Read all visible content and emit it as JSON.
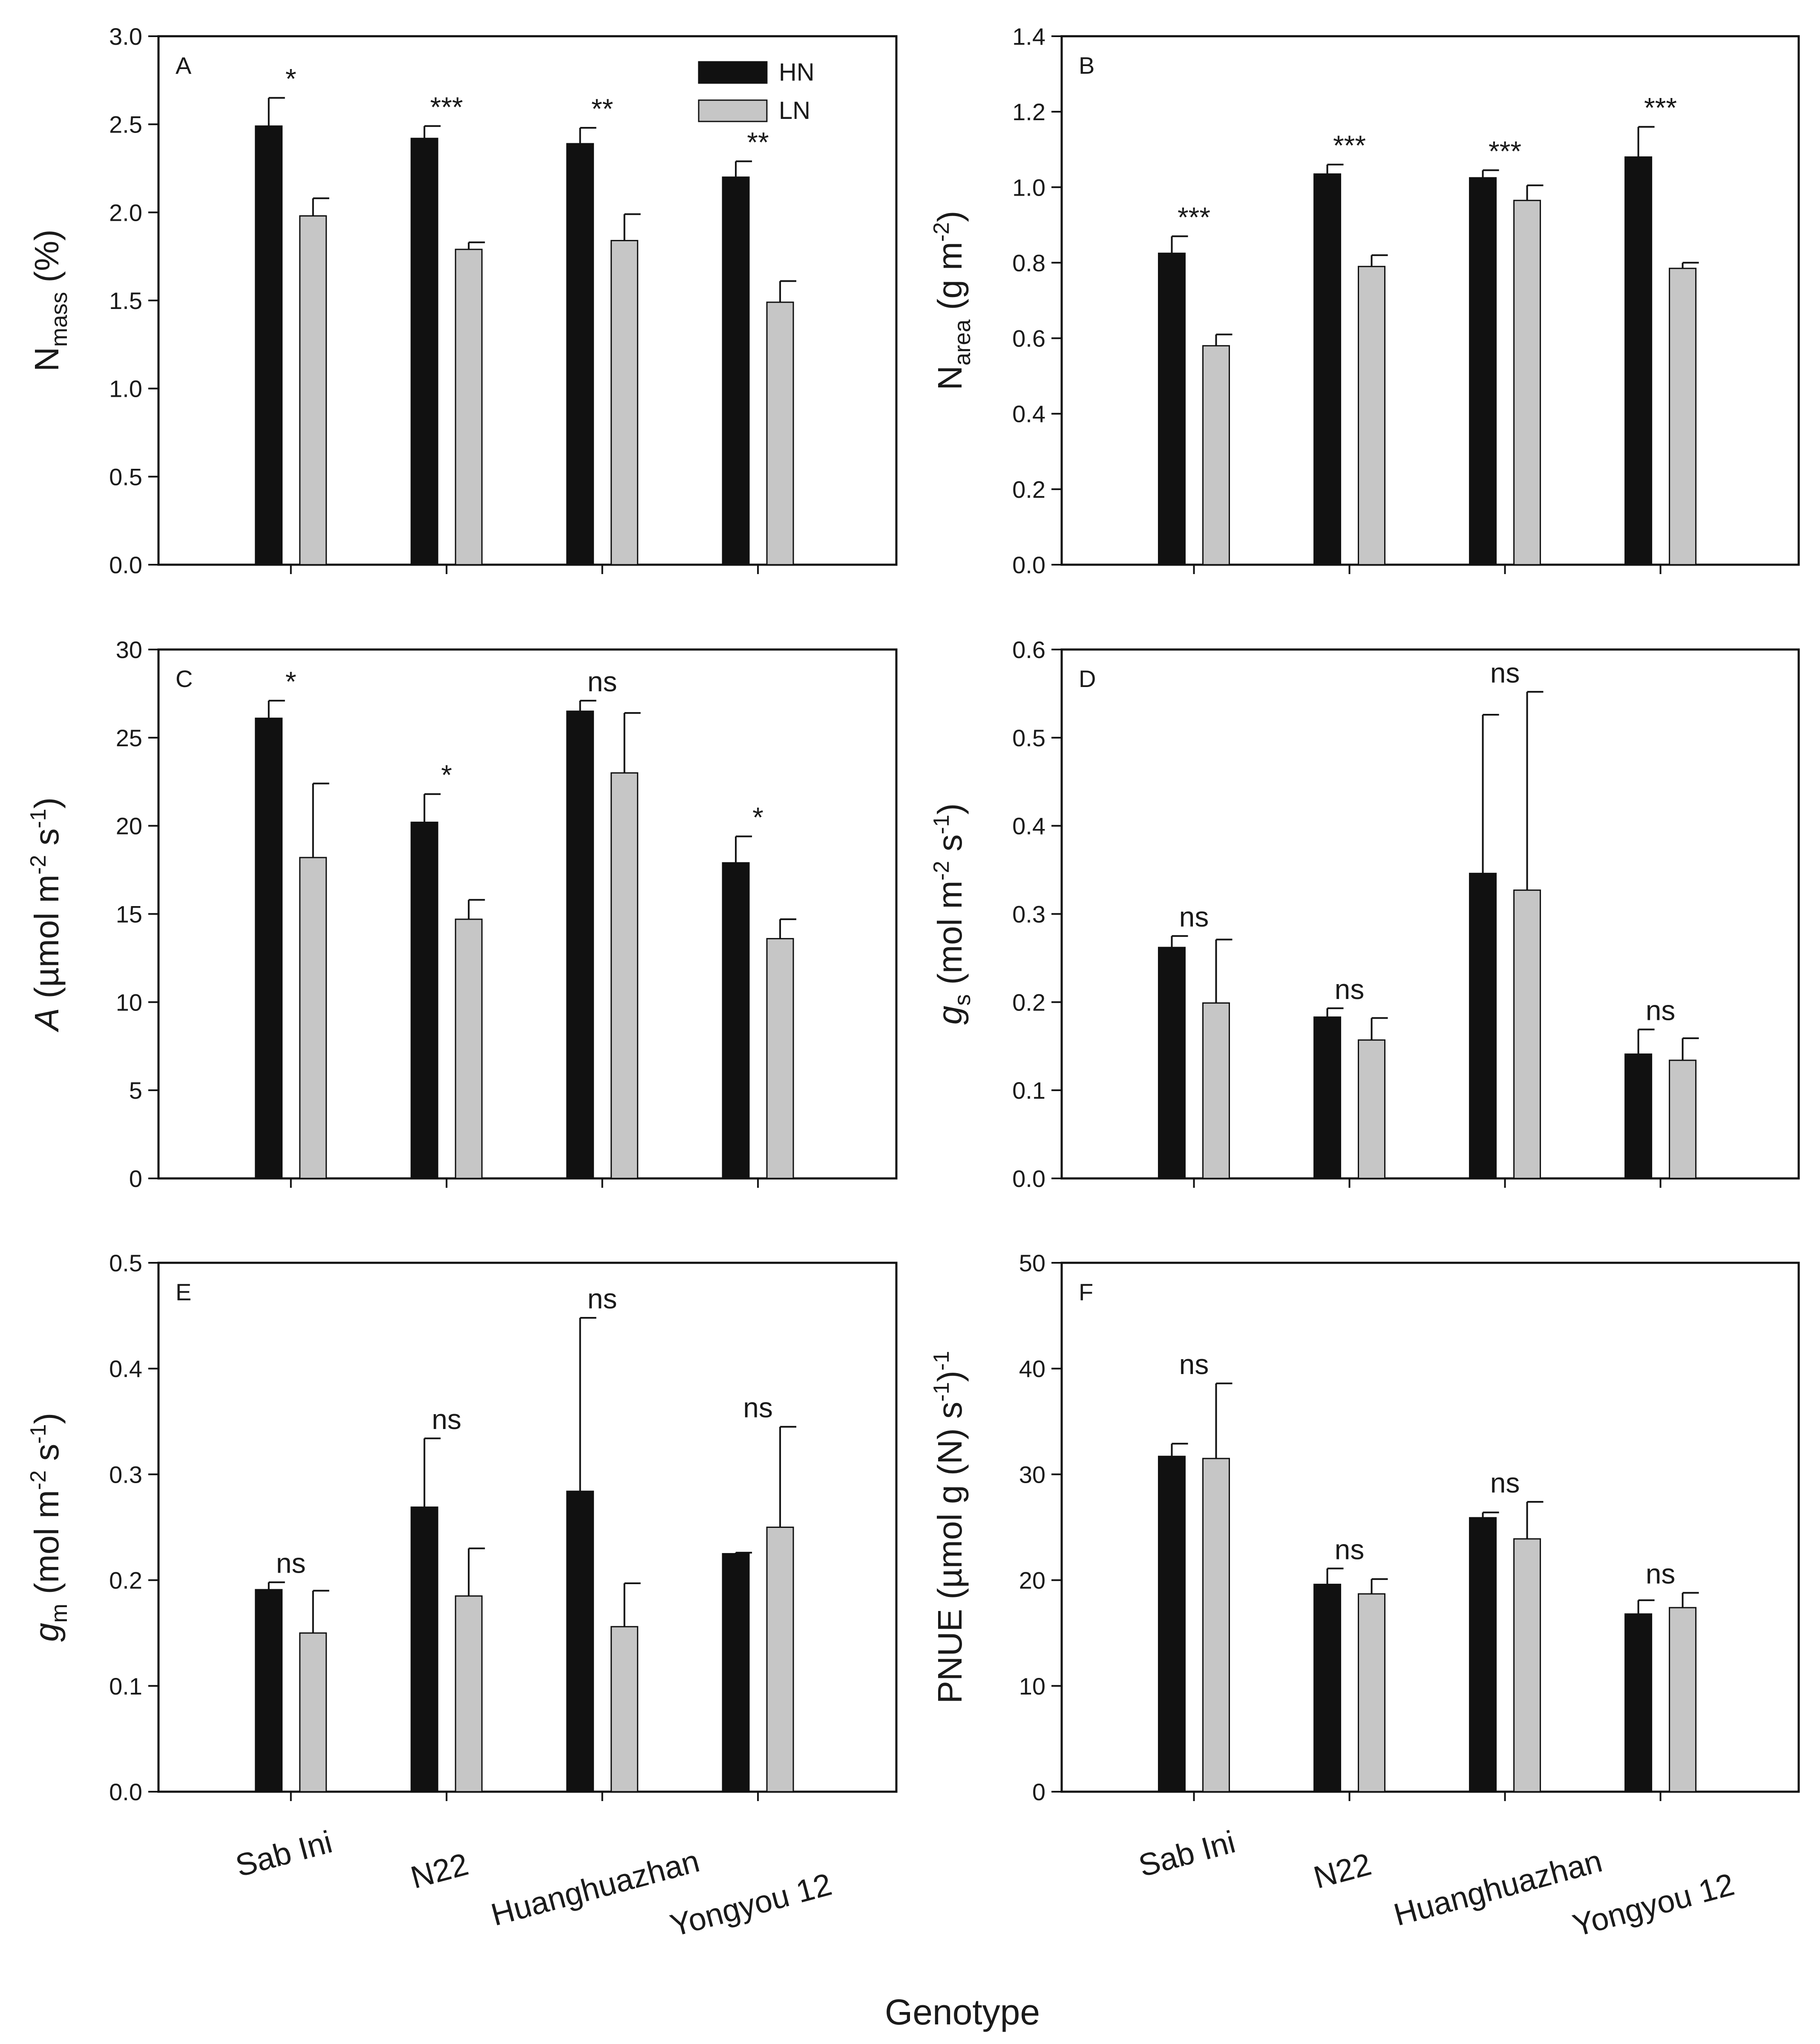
{
  "x_axis_title": "Genotype",
  "chart_data": [
    {
      "panel": "A",
      "type": "bar",
      "categories": [
        "Sab Ini",
        "N22",
        "Huanghuazhan",
        "Yongyou 12"
      ],
      "series": [
        {
          "name": "HN",
          "color": "#111111",
          "values": [
            2.49,
            2.42,
            2.39,
            2.2
          ],
          "errors": [
            0.16,
            0.07,
            0.09,
            0.09
          ]
        },
        {
          "name": "LN",
          "color": "#c6c6c6",
          "values": [
            1.98,
            1.79,
            1.84,
            1.49
          ],
          "errors": [
            0.1,
            0.04,
            0.15,
            0.12
          ]
        }
      ],
      "significance": [
        "*",
        "***",
        "**",
        "**"
      ],
      "ylabel": {
        "main": "N",
        "sub": "mass",
        "tail": " (%)"
      },
      "ylim": [
        0,
        3.0
      ],
      "yticks": [
        0,
        0.5,
        1.0,
        1.5,
        2.0,
        2.5,
        3.0
      ],
      "tick_decimals": 1,
      "legend": true
    },
    {
      "panel": "B",
      "type": "bar",
      "categories": [
        "Sab Ini",
        "N22",
        "Huanghuazhan",
        "Yongyou 12"
      ],
      "series": [
        {
          "name": "HN",
          "color": "#111111",
          "values": [
            0.825,
            1.035,
            1.025,
            1.08
          ],
          "errors": [
            0.045,
            0.025,
            0.02,
            0.08
          ]
        },
        {
          "name": "LN",
          "color": "#c6c6c6",
          "values": [
            0.58,
            0.79,
            0.965,
            0.785
          ],
          "errors": [
            0.03,
            0.03,
            0.04,
            0.015
          ]
        }
      ],
      "significance": [
        "***",
        "***",
        "***",
        "***"
      ],
      "ylabel": {
        "main": "N",
        "sub": "area",
        "tail": " (g m",
        "sup": "-2",
        "tail2": ")"
      },
      "ylim": [
        0,
        1.4
      ],
      "yticks": [
        0,
        0.2,
        0.4,
        0.6,
        0.8,
        1.0,
        1.2,
        1.4
      ],
      "tick_decimals": 1
    },
    {
      "panel": "C",
      "type": "bar",
      "categories": [
        "Sab Ini",
        "N22",
        "Huanghuazhan",
        "Yongyou 12"
      ],
      "series": [
        {
          "name": "HN",
          "color": "#111111",
          "values": [
            26.1,
            20.2,
            26.5,
            17.9
          ],
          "errors": [
            1.0,
            1.6,
            0.6,
            1.5
          ]
        },
        {
          "name": "LN",
          "color": "#c6c6c6",
          "values": [
            18.2,
            14.7,
            23.0,
            13.6
          ],
          "errors": [
            4.2,
            1.1,
            3.4,
            1.1
          ]
        }
      ],
      "significance": [
        "*",
        "*",
        "ns",
        "*"
      ],
      "ylabel": {
        "italic": "A",
        "tail": " (µmol m",
        "sup": "-2",
        "tail2": " s",
        "sup2": "-1",
        "tail3": ")"
      },
      "ylim": [
        0,
        30
      ],
      "yticks": [
        0,
        5,
        10,
        15,
        20,
        25,
        30
      ],
      "tick_decimals": 0
    },
    {
      "panel": "D",
      "type": "bar",
      "categories": [
        "Sab Ini",
        "N22",
        "Huanghuazhan",
        "Yongyou 12"
      ],
      "series": [
        {
          "name": "HN",
          "color": "#111111",
          "values": [
            0.262,
            0.183,
            0.346,
            0.141
          ],
          "errors": [
            0.013,
            0.01,
            0.18,
            0.028
          ]
        },
        {
          "name": "LN",
          "color": "#c6c6c6",
          "values": [
            0.199,
            0.157,
            0.327,
            0.134
          ],
          "errors": [
            0.072,
            0.025,
            0.225,
            0.025
          ]
        }
      ],
      "significance": [
        "ns",
        "ns",
        "ns",
        "ns"
      ],
      "ylabel": {
        "italic": "g",
        "sub": "s",
        "tail": " (mol m",
        "sup": "-2",
        "tail2": " s",
        "sup2": "-1",
        "tail3": ")"
      },
      "ylim": [
        0,
        0.6
      ],
      "yticks": [
        0,
        0.1,
        0.2,
        0.3,
        0.4,
        0.5,
        0.6
      ],
      "tick_decimals": 1
    },
    {
      "panel": "E",
      "type": "bar",
      "categories": [
        "Sab Ini",
        "N22",
        "Huanghuazhan",
        "Yongyou 12"
      ],
      "series": [
        {
          "name": "HN",
          "color": "#111111",
          "values": [
            0.191,
            0.269,
            0.284,
            0.225
          ],
          "errors": [
            0.007,
            0.065,
            0.164,
            0.001
          ]
        },
        {
          "name": "LN",
          "color": "#c6c6c6",
          "values": [
            0.15,
            0.185,
            0.156,
            0.25
          ],
          "errors": [
            0.04,
            0.045,
            0.041,
            0.095
          ]
        }
      ],
      "significance": [
        "ns",
        "ns",
        "ns",
        "ns"
      ],
      "ylabel": {
        "italic": "g",
        "sub": "m",
        "tail": " (mol m",
        "sup": "-2",
        "tail2": " s",
        "sup2": "-1",
        "tail3": ")"
      },
      "ylim": [
        0,
        0.5
      ],
      "yticks": [
        0,
        0.1,
        0.2,
        0.3,
        0.4,
        0.5
      ],
      "tick_decimals": 1,
      "show_categories": true
    },
    {
      "panel": "F",
      "type": "bar",
      "categories": [
        "Sab Ini",
        "N22",
        "Huanghuazhan",
        "Yongyou 12"
      ],
      "series": [
        {
          "name": "HN",
          "color": "#111111",
          "values": [
            31.7,
            19.6,
            25.9,
            16.8
          ],
          "errors": [
            1.2,
            1.5,
            0.5,
            1.3
          ]
        },
        {
          "name": "LN",
          "color": "#c6c6c6",
          "values": [
            31.5,
            18.7,
            23.9,
            17.4
          ],
          "errors": [
            7.1,
            1.4,
            3.5,
            1.4
          ]
        }
      ],
      "significance": [
        "ns",
        "ns",
        "ns",
        "ns"
      ],
      "ylabel": {
        "main": "PNUE (µmol g",
        "sup": "-1",
        "tail": " (N) s",
        "sup2": "-1",
        "tail2": ")"
      },
      "ylim": [
        0,
        50
      ],
      "yticks": [
        0,
        10,
        20,
        30,
        40,
        50
      ],
      "tick_decimals": 0,
      "show_categories": true
    }
  ]
}
